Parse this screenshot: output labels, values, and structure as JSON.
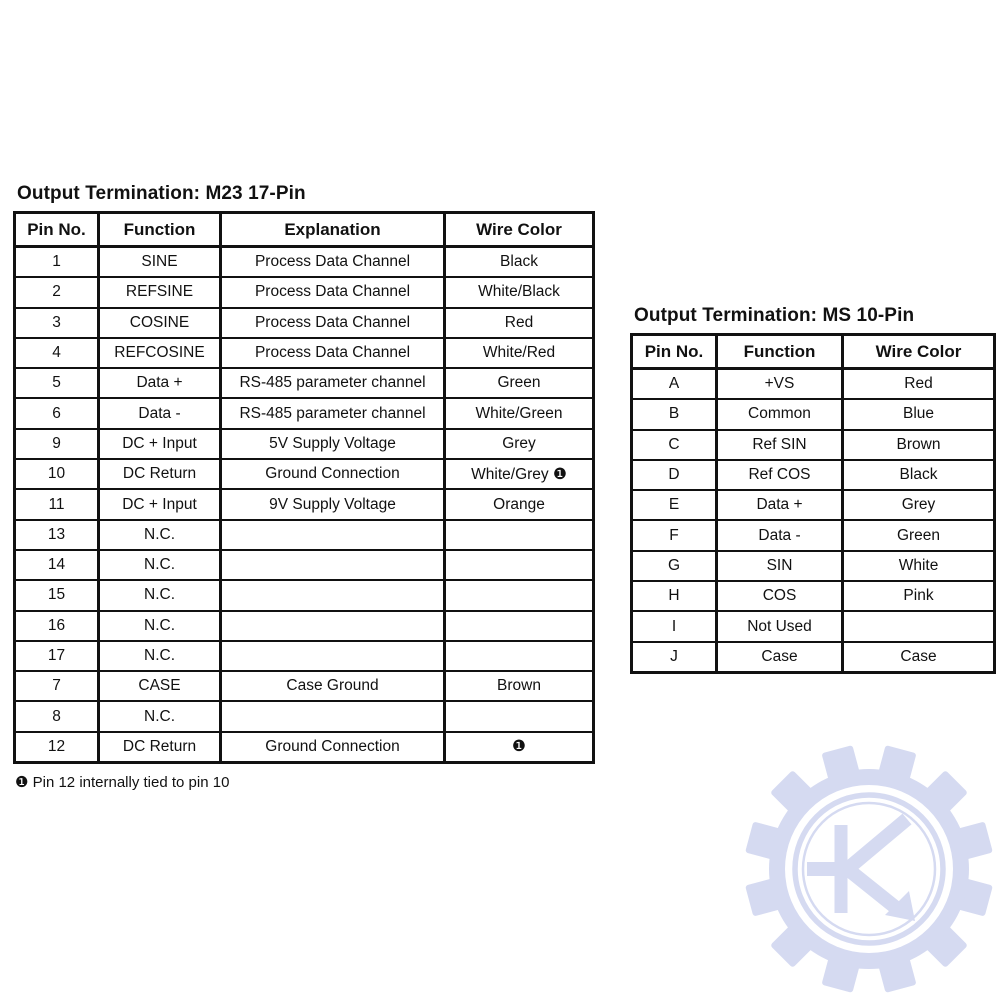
{
  "tables": [
    {
      "title": "Output Termination: M23 17-Pin",
      "columns": [
        "Pin No.",
        "Function",
        "Explanation",
        "Wire Color"
      ],
      "rows": [
        [
          "1",
          "SINE",
          "Process Data Channel",
          "Black"
        ],
        [
          "2",
          "REFSINE",
          "Process Data Channel",
          "White/Black"
        ],
        [
          "3",
          "COSINE",
          "Process Data Channel",
          "Red"
        ],
        [
          "4",
          "REFCOSINE",
          "Process Data Channel",
          "White/Red"
        ],
        [
          "5",
          "Data +",
          "RS-485 parameter channel",
          "Green"
        ],
        [
          "6",
          "Data -",
          "RS-485 parameter channel",
          "White/Green"
        ],
        [
          "9",
          "DC + Input",
          "5V Supply Voltage",
          "Grey"
        ],
        [
          "10",
          "DC Return",
          "Ground Connection",
          "White/Grey ❶"
        ],
        [
          "11",
          "DC + Input",
          "9V Supply Voltage",
          "Orange"
        ],
        [
          "13",
          "N.C.",
          "",
          ""
        ],
        [
          "14",
          "N.C.",
          "",
          ""
        ],
        [
          "15",
          "N.C.",
          "",
          ""
        ],
        [
          "16",
          "N.C.",
          "",
          ""
        ],
        [
          "17",
          "N.C.",
          "",
          ""
        ],
        [
          "7",
          "CASE",
          "Case Ground",
          "Brown"
        ],
        [
          "8",
          "N.C.",
          "",
          ""
        ],
        [
          "12",
          "DC Return",
          "Ground Connection",
          "❶"
        ]
      ],
      "footnote": "❶ Pin 12 internally tied to pin 10"
    },
    {
      "title": "Output Termination: MS 10-Pin",
      "columns": [
        "Pin No.",
        "Function",
        "Wire Color"
      ],
      "rows": [
        [
          "A",
          "+VS",
          "Red"
        ],
        [
          "B",
          "Common",
          "Blue"
        ],
        [
          "C",
          "Ref SIN",
          "Brown"
        ],
        [
          "D",
          "Ref COS",
          "Black"
        ],
        [
          "E",
          "Data +",
          "Grey"
        ],
        [
          "F",
          "Data -",
          "Green"
        ],
        [
          "G",
          "SIN",
          "White"
        ],
        [
          "H",
          "COS",
          "Pink"
        ],
        [
          "I",
          "Not Used",
          ""
        ],
        [
          "J",
          "Case",
          "Case"
        ]
      ],
      "footnote": ""
    }
  ],
  "watermark": {
    "icon": "gear-k-logo",
    "color": "#d5daf1"
  },
  "colors": {
    "text": "#111111",
    "border": "#111111",
    "background": "#ffffff"
  }
}
